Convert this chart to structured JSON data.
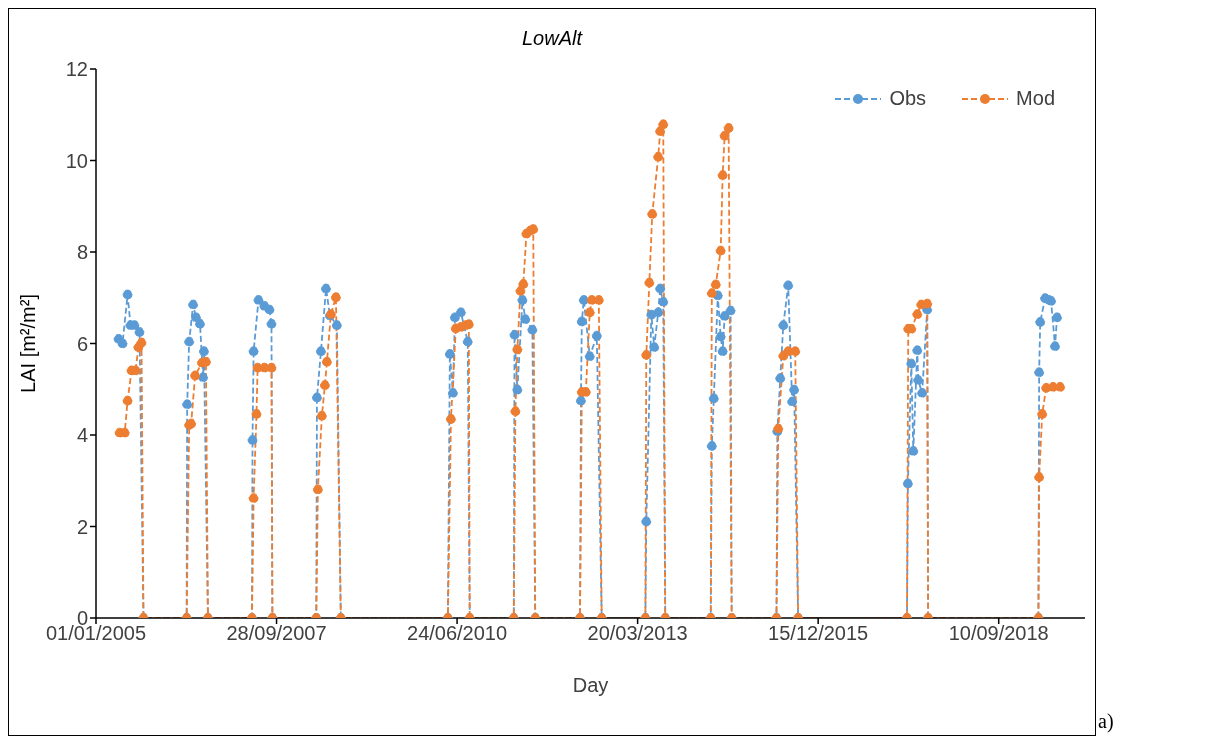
{
  "chart_data": {
    "type": "line",
    "title": "LowAlt",
    "xlabel": "Day",
    "ylabel": "LAI [m²/m²]",
    "xlim": [
      "2005-01-01",
      "2020-01-01"
    ],
    "xticks": [
      {
        "value": "2005-01-01",
        "label": "01/01/2005"
      },
      {
        "value": "2007-09-28",
        "label": "28/09/2007"
      },
      {
        "value": "2010-06-24",
        "label": "24/06/2010"
      },
      {
        "value": "2013-03-20",
        "label": "20/03/2013"
      },
      {
        "value": "2015-12-15",
        "label": "15/12/2015"
      },
      {
        "value": "2018-09-10",
        "label": "10/09/2018"
      }
    ],
    "ylim": [
      0,
      12
    ],
    "yticks": [
      0,
      2,
      4,
      6,
      8,
      10,
      12
    ],
    "marker": "circle",
    "line_style": "dashed",
    "legend": "top right",
    "annotations": [
      "a)"
    ],
    "series": [
      {
        "name": "Obs",
        "color": "#5b9bd5",
        "x": [
          "2005-05-06",
          "2005-05-28",
          "2005-06-25",
          "2005-07-11",
          "2005-08-02",
          "2005-08-30",
          "2005-09-21",
          "2006-05-18",
          "2006-05-21",
          "2006-06-01",
          "2006-06-23",
          "2006-07-09",
          "2006-07-31",
          "2006-08-17",
          "2006-08-22",
          "2006-09-13",
          "2007-05-15",
          "2007-05-18",
          "2007-05-24",
          "2007-06-20",
          "2007-07-23",
          "2007-08-20",
          "2007-08-31",
          "2007-09-05",
          "2008-05-05",
          "2008-05-09",
          "2008-05-31",
          "2008-06-28",
          "2008-07-20",
          "2008-08-27",
          "2008-09-18",
          "2010-05-04",
          "2010-05-15",
          "2010-06-01",
          "2010-06-12",
          "2010-07-15",
          "2010-08-22",
          "2010-09-02",
          "2011-05-04",
          "2011-05-08",
          "2011-05-24",
          "2011-06-21",
          "2011-07-07",
          "2011-08-15",
          "2011-08-31",
          "2012-05-05",
          "2012-05-10",
          "2012-05-15",
          "2012-05-26",
          "2012-06-28",
          "2012-08-06",
          "2012-09-02",
          "2013-05-02",
          "2013-05-07",
          "2013-06-04",
          "2013-06-20",
          "2013-07-12",
          "2013-07-23",
          "2013-08-09",
          "2013-08-20",
          "2014-04-29",
          "2014-05-05",
          "2014-05-16",
          "2014-06-07",
          "2014-06-23",
          "2014-07-04",
          "2014-07-15",
          "2014-08-17",
          "2014-08-23",
          "2015-04-28",
          "2015-05-03",
          "2015-05-19",
          "2015-06-05",
          "2015-07-02",
          "2015-07-24",
          "2015-08-04",
          "2015-08-26",
          "2017-04-20",
          "2017-04-25",
          "2017-05-14",
          "2017-05-25",
          "2017-06-16",
          "2017-06-21",
          "2017-07-13",
          "2017-08-10",
          "2017-08-15",
          "2019-04-18",
          "2019-04-22",
          "2019-04-28",
          "2019-05-25",
          "2019-06-16",
          "2019-06-27",
          "2019-07-19",
          "2019-07-30"
        ],
        "values": [
          6.1,
          6.0,
          7.07,
          6.4,
          6.4,
          6.25,
          0,
          0,
          4.67,
          6.04,
          6.85,
          6.57,
          6.43,
          5.26,
          5.83,
          0,
          0,
          3.89,
          5.83,
          6.95,
          6.82,
          6.74,
          6.43,
          0,
          0,
          4.82,
          5.83,
          7.2,
          6.61,
          6.4,
          0,
          0,
          5.77,
          4.92,
          6.57,
          6.68,
          6.04,
          0,
          0,
          6.19,
          4.99,
          6.95,
          6.53,
          6.3,
          0,
          0,
          4.75,
          6.48,
          6.95,
          5.72,
          6.17,
          0,
          0,
          2.11,
          6.63,
          5.92,
          6.68,
          7.2,
          6.91,
          0,
          0,
          3.76,
          4.8,
          7.05,
          6.15,
          5.83,
          6.6,
          6.72,
          0,
          0,
          4.08,
          5.24,
          6.4,
          7.27,
          4.73,
          4.99,
          0,
          0,
          2.94,
          5.56,
          3.65,
          5.85,
          5.2,
          4.92,
          6.74,
          0,
          0,
          5.37,
          6.47,
          6.99,
          6.95,
          6.93,
          5.94,
          6.57
        ]
      },
      {
        "name": "Mod",
        "color": "#ed7d31",
        "x": [
          "2005-05-12",
          "2005-06-09",
          "2005-06-25",
          "2005-07-17",
          "2005-08-08",
          "2005-08-24",
          "2005-09-10",
          "2005-09-21",
          "2006-05-18",
          "2006-06-01",
          "2006-06-12",
          "2006-07-04",
          "2006-08-11",
          "2006-09-02",
          "2006-09-13",
          "2007-05-15",
          "2007-05-24",
          "2007-06-09",
          "2007-06-15",
          "2007-07-23",
          "2007-08-31",
          "2007-09-05",
          "2008-05-05",
          "2008-05-14",
          "2008-06-05",
          "2008-06-22",
          "2008-07-03",
          "2008-07-25",
          "2008-08-22",
          "2008-09-18",
          "2010-05-04",
          "2010-05-21",
          "2010-06-17",
          "2010-07-15",
          "2010-08-11",
          "2010-08-28",
          "2010-09-02",
          "2011-05-04",
          "2011-05-13",
          "2011-05-24",
          "2011-06-10",
          "2011-06-26",
          "2011-07-13",
          "2011-08-04",
          "2011-08-20",
          "2011-08-31",
          "2012-05-05",
          "2012-05-15",
          "2012-06-06",
          "2012-06-28",
          "2012-07-09",
          "2012-08-17",
          "2012-09-02",
          "2013-05-02",
          "2013-05-07",
          "2013-05-24",
          "2013-06-09",
          "2013-07-12",
          "2013-07-23",
          "2013-08-09",
          "2013-08-20",
          "2014-04-29",
          "2014-05-05",
          "2014-05-27",
          "2014-06-23",
          "2014-07-04",
          "2014-07-15",
          "2014-08-06",
          "2014-08-23",
          "2015-04-28",
          "2015-05-08",
          "2015-06-05",
          "2015-07-02",
          "2015-08-10",
          "2015-08-26",
          "2017-04-20",
          "2017-04-27",
          "2017-05-14",
          "2017-06-16",
          "2017-07-08",
          "2017-08-10",
          "2017-08-15",
          "2019-04-18",
          "2019-04-22",
          "2019-05-09",
          "2019-05-31",
          "2019-07-08",
          "2019-08-16"
        ],
        "values": [
          4.05,
          4.05,
          4.75,
          5.41,
          5.41,
          5.92,
          6.02,
          0,
          0,
          4.22,
          4.25,
          5.3,
          5.58,
          5.6,
          0,
          0,
          2.62,
          4.46,
          5.47,
          5.47,
          5.47,
          0,
          0,
          2.81,
          4.42,
          5.09,
          5.6,
          6.64,
          7.01,
          0,
          0,
          4.35,
          6.33,
          6.36,
          6.4,
          6.42,
          0,
          0,
          4.52,
          5.87,
          7.15,
          7.3,
          8.4,
          8.47,
          8.5,
          0,
          0,
          4.94,
          4.94,
          6.68,
          6.95,
          6.95,
          0,
          0,
          5.75,
          7.33,
          8.83,
          10.08,
          10.64,
          10.79,
          0,
          0,
          7.1,
          7.29,
          8.03,
          9.68,
          10.54,
          10.71,
          0,
          0,
          4.14,
          5.73,
          5.83,
          5.83,
          0,
          0,
          6.32,
          6.32,
          6.64,
          6.85,
          6.87,
          0,
          0,
          3.08,
          4.46,
          5.03,
          5.05,
          5.05
        ]
      }
    ]
  }
}
